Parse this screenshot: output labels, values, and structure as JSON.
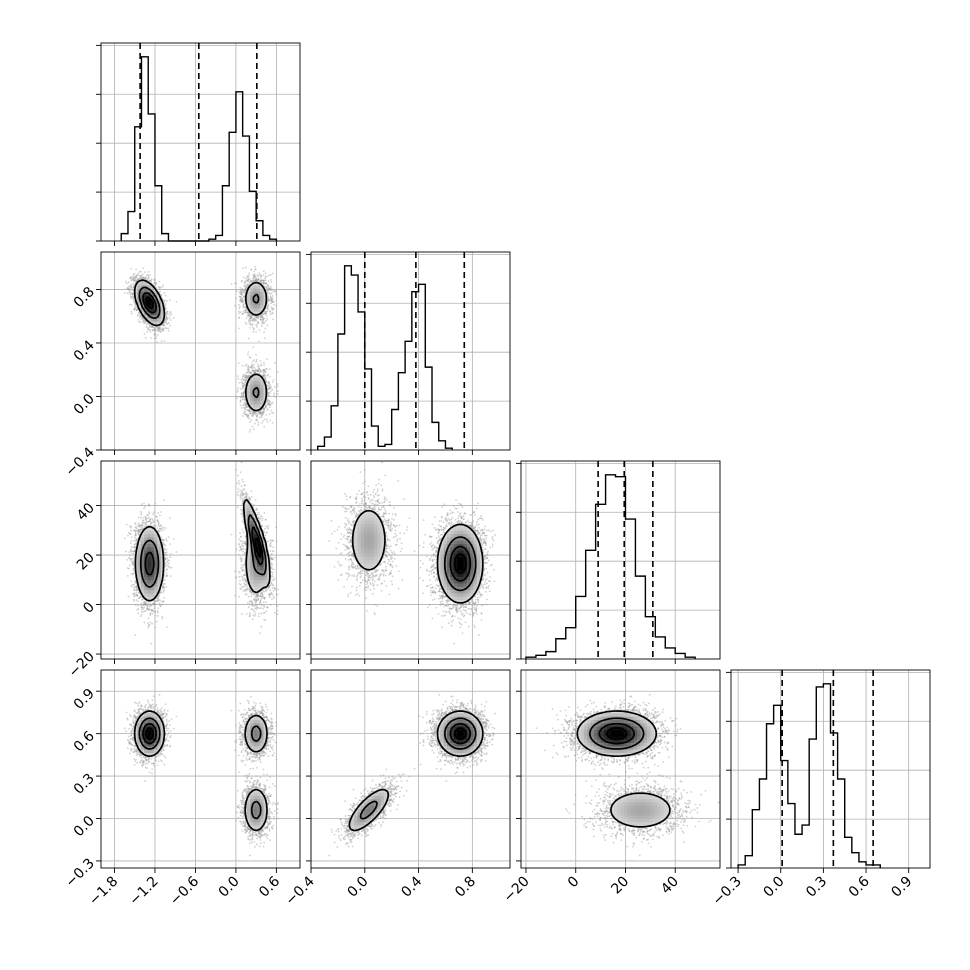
{
  "chart_data": {
    "type": "corner",
    "n_params": 4,
    "grid": true,
    "params": [
      {
        "range": [
          -2.0,
          0.95
        ],
        "ticks": [
          -1.8,
          -1.2,
          -0.6,
          0.0,
          0.6
        ],
        "tick_labels": [
          "−1.8",
          "−1.2",
          "−0.6",
          "0.0",
          "0.6"
        ],
        "quantiles": [
          -1.42,
          -0.55,
          0.31
        ]
      },
      {
        "range": [
          -0.4,
          1.08
        ],
        "ticks": [
          -0.4,
          0.0,
          0.4,
          0.8
        ],
        "tick_labels": [
          "−0.4",
          "0.0",
          "0.4",
          "0.8"
        ],
        "quantiles": [
          0.0,
          0.38,
          0.74
        ]
      },
      {
        "range": [
          -22,
          58
        ],
        "ticks": [
          -20,
          0,
          20,
          40
        ],
        "tick_labels": [
          "−20",
          "0",
          "20",
          "40"
        ],
        "quantiles": [
          9,
          19.5,
          31
        ]
      },
      {
        "range": [
          -0.35,
          1.05
        ],
        "ticks": [
          -0.3,
          0.0,
          0.3,
          0.6,
          0.9
        ],
        "tick_labels": [
          "−0.3",
          "0.0",
          "0.3",
          "0.6",
          "0.9"
        ],
        "quantiles": [
          0.01,
          0.37,
          0.65
        ]
      }
    ],
    "histograms": [
      {
        "param": 0,
        "edges_start": -1.7,
        "bin_width": 0.1,
        "counts": [
          4,
          16,
          62,
          100,
          69,
          30,
          4,
          0,
          0,
          0,
          0,
          0,
          0,
          1,
          3,
          30,
          59,
          81,
          57,
          27,
          11,
          3,
          1
        ]
      },
      {
        "param": 1,
        "edges_start": -0.35,
        "bin_width": 0.05,
        "counts": [
          2,
          7,
          24,
          63,
          100,
          95,
          75,
          44,
          13,
          2,
          3,
          22,
          42,
          59,
          86,
          90,
          45,
          15,
          5,
          1
        ]
      },
      {
        "param": 2,
        "edges_start": -20,
        "bin_width": 4,
        "counts": [
          1,
          2,
          4,
          11,
          17,
          34,
          59,
          84,
          100,
          99,
          76,
          45,
          23,
          12,
          6,
          3,
          1
        ]
      },
      {
        "param": 3,
        "edges_start": -0.3,
        "bin_width": 0.05,
        "counts": [
          1,
          4,
          19,
          29,
          47,
          53,
          35,
          21,
          11,
          14,
          42,
          59,
          60,
          44,
          29,
          10,
          5,
          2,
          1,
          1
        ]
      }
    ],
    "modes": [
      {
        "weight": 0.5,
        "mean": [
          -1.28,
          0.7,
          16.5,
          0.6
        ],
        "sd": [
          0.11,
          0.085,
          8.0,
          0.08
        ]
      },
      {
        "weight": 0.25,
        "mean": [
          0.3,
          0.03,
          26.0,
          0.06
        ],
        "sd": [
          0.1,
          0.09,
          9.0,
          0.09
        ]
      },
      {
        "weight": 0.25,
        "mean": [
          0.3,
          0.73,
          16.5,
          0.6
        ],
        "sd": [
          0.1,
          0.08,
          8.0,
          0.08
        ]
      }
    ],
    "correlations": [
      {
        "mode": 0,
        "pairs": [
          [
            0,
            1,
            -0.5
          ]
        ]
      },
      {
        "mode": 1,
        "pairs": [
          [
            0,
            2,
            -0.85
          ],
          [
            1,
            3,
            0.75
          ]
        ]
      },
      {
        "mode": 2,
        "pairs": []
      }
    ],
    "pairs_shown": [
      [
        1,
        0
      ],
      [
        2,
        0
      ],
      [
        3,
        0
      ],
      [
        2,
        1
      ],
      [
        3,
        1
      ],
      [
        3,
        2
      ]
    ]
  }
}
